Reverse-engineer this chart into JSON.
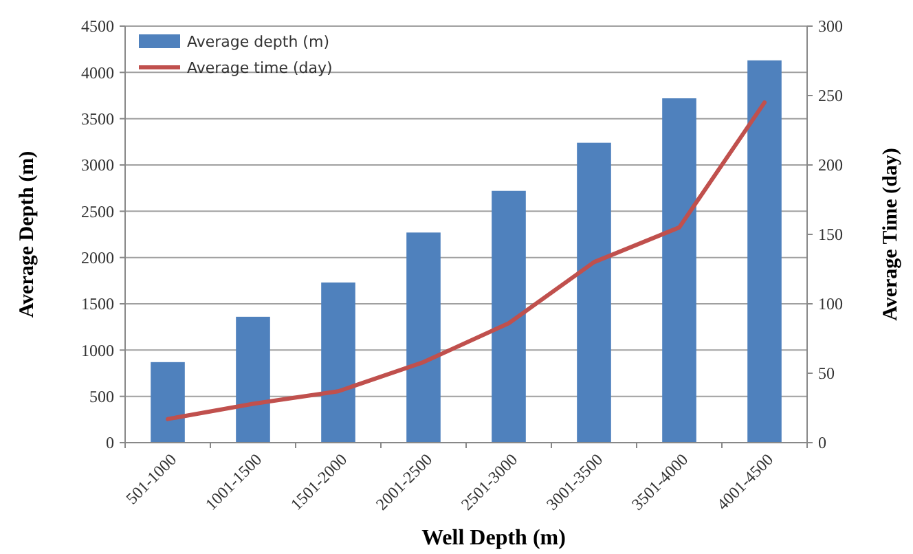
{
  "chart_data": {
    "type": "bar",
    "xlabel": "Well Depth (m)",
    "ylabel": "Average Depth (m)",
    "y2label": "Average Time (day)",
    "categories": [
      "501-1000",
      "1001-1500",
      "1501-2000",
      "2001-2500",
      "2501-3000",
      "3001-3500",
      "3501-4000",
      "4001-4500"
    ],
    "series": [
      {
        "name": "Average depth (m)",
        "color": "#4f81bd",
        "values": [
          870,
          1360,
          1730,
          2270,
          2720,
          3240,
          3720,
          4130
        ]
      },
      {
        "name": "Average time (day)",
        "type": "line",
        "axis": "y2",
        "color": "#c0504d",
        "values": [
          17,
          28,
          37,
          58,
          86,
          130,
          155,
          245
        ]
      }
    ],
    "ylim": [
      0,
      4500
    ],
    "yticks": [
      0,
      500,
      1000,
      1500,
      2000,
      2500,
      3000,
      3500,
      4000,
      4500
    ],
    "y2lim": [
      0,
      300
    ],
    "y2ticks": [
      0,
      50,
      100,
      150,
      200,
      250,
      300
    ],
    "grid": "y",
    "legend": "top left",
    "marker": "none",
    "line_style": "solid"
  }
}
